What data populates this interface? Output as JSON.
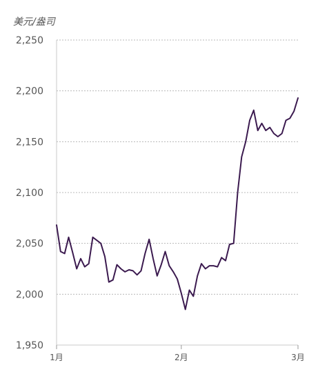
{
  "unit_label": "美元/盎司",
  "chart_data": {
    "type": "line",
    "ylabel": "美元/盎司",
    "xlabel": "",
    "title": "",
    "ylim": [
      1950,
      2250
    ],
    "yticks": [
      1950,
      2000,
      2050,
      2100,
      2150,
      2200,
      2250
    ],
    "ytick_labels": [
      "1,950",
      "2,000",
      "2,050",
      "2,100",
      "2,150",
      "2,200",
      "2,250"
    ],
    "xlim": [
      1,
      61
    ],
    "xticks": [
      1,
      32,
      61
    ],
    "xtick_labels": [
      "1月",
      "2月",
      "3月"
    ],
    "grid": "horizontal-dotted",
    "line_color": "#3b1a4f",
    "series": [
      {
        "x": [
          1,
          2,
          3,
          4,
          5,
          6,
          7,
          8,
          9,
          10,
          11,
          12,
          13,
          14,
          15,
          16,
          17,
          18,
          19,
          20,
          21,
          22,
          23,
          24,
          25,
          26,
          27,
          28,
          29,
          30,
          31,
          32,
          33,
          34,
          35,
          36,
          37,
          38,
          39,
          40,
          41,
          42,
          43,
          44,
          45,
          46,
          47,
          48,
          49,
          50,
          51,
          52,
          53,
          54,
          55,
          56,
          57,
          58,
          59,
          60,
          61
        ],
        "y": [
          2068,
          2042,
          2040,
          2056,
          2041,
          2025,
          2035,
          2027,
          2030,
          2056,
          2053,
          2050,
          2037,
          2012,
          2014,
          2029,
          2025,
          2022,
          2024,
          2023,
          2019,
          2023,
          2040,
          2054,
          2035,
          2018,
          2029,
          2042,
          2028,
          2022,
          2015,
          2001,
          1985,
          2004,
          1998,
          2018,
          2030,
          2025,
          2028,
          2028,
          2027,
          2036,
          2033,
          2049,
          2050,
          2100,
          2135,
          2150,
          2171,
          2181,
          2161,
          2168,
          2161,
          2164,
          2158,
          2155,
          2158,
          2171,
          2173,
          2180,
          2193
        ]
      }
    ]
  }
}
